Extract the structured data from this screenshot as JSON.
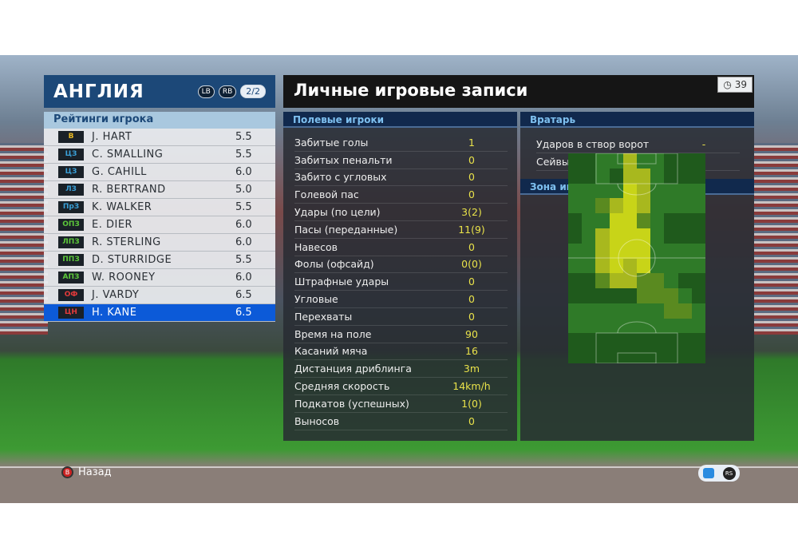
{
  "team": {
    "name": "АНГЛИЯ",
    "lb": "LB",
    "rb": "RB",
    "page": "2/2"
  },
  "ratings_title": "Рейтинги игрока",
  "players": [
    {
      "pos": "В",
      "pos_color": "#e8b923",
      "name": "J. HART",
      "rating": "5.5"
    },
    {
      "pos": "ЦЗ",
      "pos_color": "#3aa0d8",
      "name": "C. SMALLING",
      "rating": "5.5"
    },
    {
      "pos": "ЦЗ",
      "pos_color": "#3aa0d8",
      "name": "G. CAHILL",
      "rating": "6.0"
    },
    {
      "pos": "ЛЗ",
      "pos_color": "#3aa0d8",
      "name": "R. BERTRAND",
      "rating": "5.0"
    },
    {
      "pos": "ПрЗ",
      "pos_color": "#3aa0d8",
      "name": "K. WALKER",
      "rating": "5.5"
    },
    {
      "pos": "ОПЗ",
      "pos_color": "#5cc83a",
      "name": "E. DIER",
      "rating": "6.0"
    },
    {
      "pos": "ЛПЗ",
      "pos_color": "#5cc83a",
      "name": "R. STERLING",
      "rating": "6.0"
    },
    {
      "pos": "ППЗ",
      "pos_color": "#5cc83a",
      "name": "D. STURRIDGE",
      "rating": "5.5"
    },
    {
      "pos": "АПЗ",
      "pos_color": "#5cc83a",
      "name": "W. ROONEY",
      "rating": "6.0"
    },
    {
      "pos": "ОФ",
      "pos_color": "#e23a3a",
      "name": "J. VARDY",
      "rating": "6.5"
    },
    {
      "pos": "ЦН",
      "pos_color": "#e23a3a",
      "name": "H. KANE",
      "rating": "6.5",
      "selected": true
    }
  ],
  "main": {
    "title": "Личные игровые записи",
    "timer": "39",
    "timer_icon": "clock-icon"
  },
  "field_players": {
    "title": "Полевые игроки",
    "stats": [
      {
        "label": "Забитые голы",
        "value": "1"
      },
      {
        "label": "Забитых пенальти",
        "value": "0"
      },
      {
        "label": "Забито с угловых",
        "value": "0"
      },
      {
        "label": "Голевой пас",
        "value": "0"
      },
      {
        "label": "Удары (по цели)",
        "value": "3(2)"
      },
      {
        "label": "Пасы (переданные)",
        "value": "11(9)"
      },
      {
        "label": "Навесов",
        "value": "0"
      },
      {
        "label": "Фолы (офсайд)",
        "value": "0(0)"
      },
      {
        "label": "Штрафные удары",
        "value": "0"
      },
      {
        "label": "Угловые",
        "value": "0"
      },
      {
        "label": "Перехваты",
        "value": "0"
      },
      {
        "label": "Время на поле",
        "value": "90"
      },
      {
        "label": "Касаний мяча",
        "value": "16"
      },
      {
        "label": "Дистанция дриблинга",
        "value": "3m"
      },
      {
        "label": "Средняя скорость",
        "value": "14km/h"
      },
      {
        "label": "Подкатов (успешных)",
        "value": "1(0)"
      },
      {
        "label": "Выносов",
        "value": "0"
      }
    ]
  },
  "goalkeeper": {
    "title": "Вратарь",
    "stats": [
      {
        "label": "Ударов в створ ворот",
        "value": "-"
      },
      {
        "label": "Сейвы",
        "value": "-"
      }
    ]
  },
  "zone": {
    "title": "Зона игры",
    "heatmap_levels": [
      [
        0,
        0,
        1,
        1,
        3,
        1,
        1,
        0,
        0,
        0
      ],
      [
        0,
        0,
        1,
        0,
        3,
        3,
        1,
        0,
        0,
        0
      ],
      [
        1,
        1,
        1,
        1,
        4,
        3,
        1,
        1,
        1,
        1
      ],
      [
        1,
        1,
        2,
        3,
        4,
        3,
        1,
        1,
        1,
        1
      ],
      [
        0,
        1,
        1,
        4,
        4,
        2,
        1,
        0,
        0,
        0
      ],
      [
        0,
        1,
        3,
        4,
        4,
        4,
        1,
        0,
        0,
        0
      ],
      [
        1,
        1,
        3,
        4,
        4,
        4,
        1,
        1,
        1,
        1
      ],
      [
        1,
        1,
        3,
        4,
        3,
        4,
        1,
        1,
        1,
        1
      ],
      [
        0,
        0,
        2,
        3,
        3,
        2,
        2,
        1,
        0,
        0
      ],
      [
        0,
        0,
        0,
        0,
        0,
        2,
        2,
        2,
        1,
        0
      ],
      [
        1,
        1,
        1,
        1,
        1,
        1,
        1,
        2,
        2,
        1
      ],
      [
        1,
        1,
        1,
        1,
        1,
        1,
        1,
        1,
        1,
        1
      ],
      [
        0,
        0,
        0,
        0,
        0,
        0,
        0,
        0,
        0,
        0
      ],
      [
        0,
        0,
        0,
        0,
        0,
        0,
        0,
        0,
        0,
        0
      ]
    ],
    "level_colors": [
      "#1f5a1c",
      "#2f7a28",
      "#5a8a20",
      "#a8b81e",
      "#c8d418"
    ]
  },
  "footer": {
    "back_button": "B",
    "back_label": "Назад",
    "chat_icon": "chat-icon",
    "rs_button": "RS"
  }
}
